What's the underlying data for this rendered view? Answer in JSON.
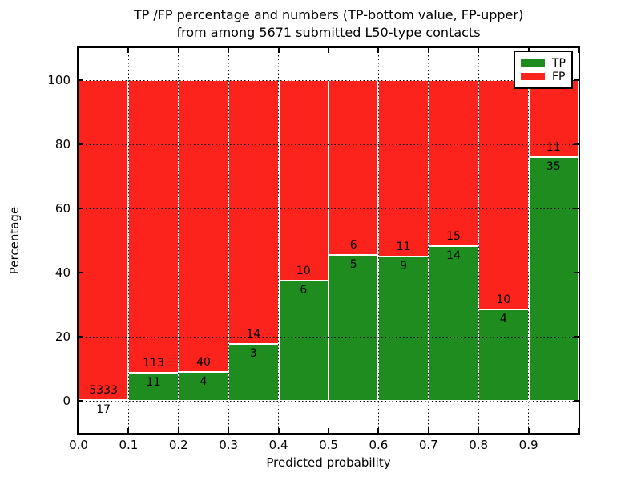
{
  "figure": {
    "title_line1": "TP /FP percentage and numbers (TP-bottom value, FP-upper)",
    "title_line2": "from among 5671 submitted L50-type contacts"
  },
  "chart_data": {
    "type": "bar",
    "stacked": true,
    "normalized_to_percent": true,
    "title": "TP /FP percentage and numbers (TP-bottom value, FP-upper) from among 5671 submitted L50-type contacts",
    "xlabel": "Predicted probability",
    "ylabel": "Percentage",
    "xlim": [
      0.0,
      1.0
    ],
    "ylim": [
      -10,
      110
    ],
    "bin_width": 0.1,
    "grid": true,
    "categories": [
      "0.0-0.1",
      "0.1-0.2",
      "0.2-0.3",
      "0.3-0.4",
      "0.4-0.5",
      "0.5-0.6",
      "0.6-0.7",
      "0.7-0.8",
      "0.8-0.9",
      "0.9-1.0"
    ],
    "x_major_ticks": [
      "0.0",
      "0.1",
      "0.2",
      "0.3",
      "0.4",
      "0.5",
      "0.6",
      "0.7",
      "0.8",
      "0.9"
    ],
    "y_major_ticks": [
      0,
      20,
      40,
      60,
      80,
      100
    ],
    "series": [
      {
        "name": "TP",
        "color": "#1e8c1e",
        "values": [
          17,
          11,
          4,
          3,
          6,
          5,
          9,
          14,
          4,
          35
        ]
      },
      {
        "name": "FP",
        "color": "#fb231b",
        "values": [
          5333,
          113,
          40,
          14,
          10,
          6,
          11,
          15,
          10,
          11
        ]
      }
    ],
    "tp_percent_of_bin": [
      0.32,
      8.87,
      9.09,
      17.65,
      37.5,
      45.45,
      45.0,
      48.28,
      28.57,
      76.09
    ],
    "total_contacts": 5671,
    "legend": {
      "position": "upper right",
      "entries": [
        "TP",
        "FP"
      ]
    }
  }
}
